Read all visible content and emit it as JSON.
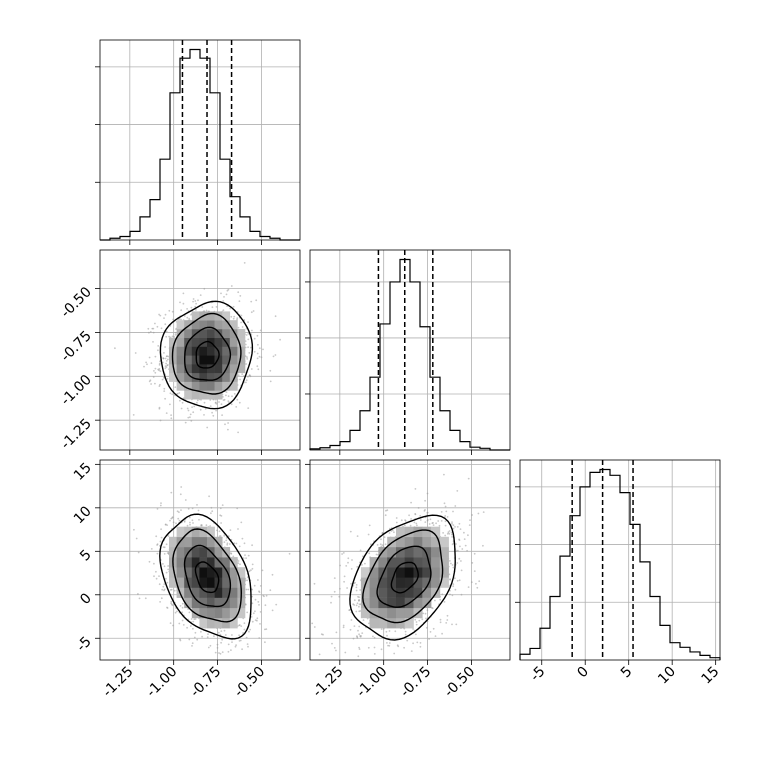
{
  "chart_data": {
    "type": "corner",
    "parameters": [
      {
        "name": "",
        "lim": [
          -1.42,
          -0.28
        ],
        "ticks": [
          "-1.25",
          "-1.00",
          "-0.75",
          "-0.50"
        ],
        "tick_values": [
          -1.25,
          -1.0,
          -0.75,
          -0.5
        ]
      },
      {
        "name": "",
        "lim": [
          -1.42,
          -0.28
        ],
        "ticks": [
          "-1.25",
          "-1.00",
          "-0.75",
          "-0.50"
        ],
        "tick_values": [
          -1.25,
          -1.0,
          -0.75,
          -0.5
        ]
      },
      {
        "name": "",
        "lim": [
          -7.5,
          15.5
        ],
        "ticks": [
          "-5",
          "0",
          "5",
          "10",
          "15"
        ],
        "tick_values": [
          -5,
          0,
          5,
          10,
          15
        ]
      }
    ],
    "histograms": [
      {
        "param": 0,
        "bin_edges": [
          -1.42,
          -1.363,
          -1.306,
          -1.249,
          -1.192,
          -1.135,
          -1.078,
          -1.021,
          -0.964,
          -0.907,
          -0.85,
          -0.793,
          -0.736,
          -0.679,
          -0.622,
          -0.565,
          -0.508,
          -0.451,
          -0.394,
          -0.337,
          -0.28
        ],
        "counts": [
          0,
          3,
          6,
          15,
          40,
          70,
          140,
          255,
          315,
          330,
          315,
          255,
          140,
          75,
          40,
          15,
          6,
          3,
          0,
          0
        ],
        "quantiles": [
          -0.95,
          -0.81,
          -0.67
        ]
      },
      {
        "param": 1,
        "bin_edges": [
          -1.42,
          -1.363,
          -1.306,
          -1.249,
          -1.192,
          -1.135,
          -1.078,
          -1.021,
          -0.964,
          -0.907,
          -0.85,
          -0.793,
          -0.736,
          -0.679,
          -0.622,
          -0.565,
          -0.508,
          -0.451,
          -0.394,
          -0.337,
          -0.28
        ],
        "counts": [
          2,
          4,
          8,
          15,
          35,
          70,
          130,
          225,
          300,
          340,
          300,
          220,
          130,
          70,
          35,
          15,
          5,
          3,
          0,
          0
        ],
        "quantiles": [
          -1.03,
          -0.88,
          -0.72
        ]
      },
      {
        "param": 2,
        "bin_edges": [
          -7.5,
          -6.35,
          -5.2,
          -4.05,
          -2.9,
          -1.75,
          -0.6,
          0.55,
          1.7,
          2.85,
          4.0,
          5.15,
          6.3,
          7.45,
          8.6,
          9.75,
          10.9,
          12.05,
          13.2,
          14.35,
          15.5
        ],
        "counts": [
          10,
          20,
          55,
          110,
          180,
          250,
          300,
          325,
          330,
          320,
          290,
          235,
          170,
          110,
          60,
          30,
          22,
          14,
          8,
          4
        ],
        "quantiles": [
          -1.5,
          2.0,
          5.5
        ]
      }
    ],
    "joint": [
      {
        "x_param": 0,
        "y_param": 1,
        "mean": [
          -0.81,
          -0.88
        ],
        "sigma": [
          0.13,
          0.15
        ],
        "rho": 0.05
      },
      {
        "x_param": 0,
        "y_param": 2,
        "mean": [
          -0.81,
          2.0
        ],
        "sigma": [
          0.13,
          3.5
        ],
        "rho": -0.35
      },
      {
        "x_param": 1,
        "y_param": 2,
        "mean": [
          -0.88,
          2.0
        ],
        "sigma": [
          0.15,
          3.5
        ],
        "rho": 0.35
      }
    ],
    "contour_levels_sigma": [
      0.5,
      1.0,
      1.5,
      2.0
    ],
    "grid": true,
    "colors": {
      "line": "#000000",
      "grid": "#b0b0b0",
      "points": "#9a9a9a",
      "frame": "#000000"
    },
    "title": "",
    "xlabel": "",
    "ylabel": ""
  }
}
